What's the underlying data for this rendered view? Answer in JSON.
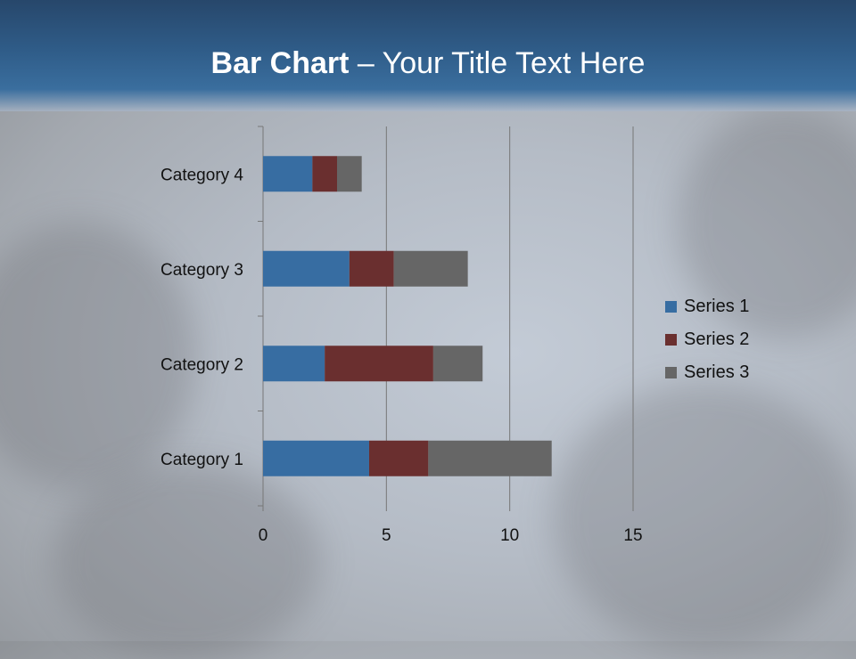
{
  "slide": {
    "title_bold": "Bar Chart",
    "title_rest": " – Your Title Text Here"
  },
  "chart_data": {
    "type": "bar",
    "orientation": "horizontal",
    "stacked": true,
    "categories": [
      "Category 1",
      "Category 2",
      "Category 3",
      "Category 4"
    ],
    "series": [
      {
        "name": "Series 1",
        "values": [
          4.3,
          2.5,
          3.5,
          2
        ],
        "color": "#376da2"
      },
      {
        "name": "Series 2",
        "values": [
          2.4,
          4.4,
          1.8,
          1
        ],
        "color": "#6a2f2f"
      },
      {
        "name": "Series 3",
        "values": [
          5,
          2,
          3,
          1
        ],
        "color": "#666666"
      }
    ],
    "xlim": [
      0,
      15
    ],
    "xticks": [
      "0",
      "5",
      "10",
      "15"
    ],
    "grid": true,
    "legend": "right"
  }
}
